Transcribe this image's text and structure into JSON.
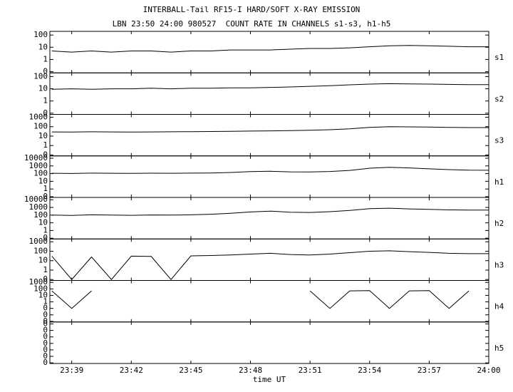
{
  "chart_data": {
    "type": "line",
    "title": "INTERBALL-Tail RF15-I HARD/SOFT X-RAY EMISSION",
    "subtitle": "LBN 23:50 24:00 980527  COUNT RATE IN CHANNELS s1-s3, h1-h5",
    "xlabel": "time UT",
    "yscale": "log",
    "color": "#000000",
    "x": [
      38,
      39,
      40,
      41,
      42,
      43,
      44,
      45,
      46,
      47,
      48,
      49,
      50,
      51,
      52,
      53,
      54,
      55,
      56,
      57,
      58,
      59,
      60
    ],
    "xlim": [
      37.9,
      60
    ],
    "xticks": [
      {
        "value": 39,
        "label": "23:39"
      },
      {
        "value": 42,
        "label": "23:42"
      },
      {
        "value": 45,
        "label": "23:45"
      },
      {
        "value": 48,
        "label": "23:48"
      },
      {
        "value": 51,
        "label": "23:51"
      },
      {
        "value": 54,
        "label": "23:54"
      },
      {
        "value": 57,
        "label": "23:57"
      },
      {
        "value": 60,
        "label": "24:00"
      }
    ],
    "series": [
      {
        "name": "s1",
        "ylim": [
          0.08,
          200
        ],
        "yticks": [
          {
            "value": 0.1,
            "label": "0"
          },
          1,
          10,
          100
        ],
        "values": [
          5,
          4,
          5,
          4,
          5,
          5,
          4,
          5,
          5,
          6,
          6,
          6,
          7,
          8,
          8,
          9,
          11,
          13,
          14,
          13,
          12,
          11,
          11
        ]
      },
      {
        "name": "s2",
        "ylim": [
          0.08,
          200
        ],
        "yticks": [
          {
            "value": 0.1,
            "label": "0"
          },
          1,
          10,
          100
        ],
        "values": [
          9,
          10,
          9,
          10,
          10,
          11,
          10,
          11,
          11,
          12,
          12,
          13,
          14,
          16,
          18,
          21,
          24,
          26,
          25,
          24,
          23,
          22,
          22
        ]
      },
      {
        "name": "s3",
        "ylim": [
          0.08,
          2000
        ],
        "yticks": [
          {
            "value": 0.1,
            "label": "0"
          },
          1,
          10,
          100,
          1000
        ],
        "values": [
          28,
          27,
          29,
          28,
          27,
          28,
          29,
          30,
          31,
          32,
          34,
          36,
          38,
          42,
          48,
          60,
          85,
          100,
          95,
          90,
          85,
          80,
          80
        ]
      },
      {
        "name": "h1",
        "ylim": [
          0.08,
          20000
        ],
        "yticks": [
          {
            "value": 0.1,
            "label": "0"
          },
          1,
          10,
          100,
          1000,
          10000
        ],
        "values": [
          110,
          105,
          115,
          110,
          108,
          112,
          110,
          115,
          120,
          140,
          180,
          200,
          170,
          165,
          190,
          260,
          500,
          650,
          550,
          420,
          330,
          280,
          270
        ]
      },
      {
        "name": "h2",
        "ylim": [
          0.08,
          20000
        ],
        "yticks": [
          {
            "value": 0.1,
            "label": "0"
          },
          1,
          10,
          100,
          1000,
          10000
        ],
        "values": [
          100,
          90,
          110,
          100,
          95,
          105,
          100,
          110,
          130,
          170,
          260,
          330,
          240,
          220,
          280,
          400,
          700,
          800,
          650,
          550,
          480,
          450,
          450
        ]
      },
      {
        "name": "h3",
        "ylim": [
          0.08,
          2000
        ],
        "yticks": [
          {
            "value": 0.1,
            "label": "0"
          },
          1,
          10,
          100,
          1000
        ],
        "values": [
          30,
          0.1,
          25,
          0.1,
          30,
          28,
          0.1,
          32,
          35,
          40,
          50,
          60,
          45,
          40,
          50,
          70,
          100,
          110,
          90,
          75,
          60,
          55,
          55
        ]
      },
      {
        "name": "h4",
        "ylim": [
          0.0008,
          2000
        ],
        "yticks": [
          {
            "value": 0.001,
            "label": "0"
          },
          {
            "value": 0.01,
            "label": "0"
          },
          {
            "value": 0.1,
            "label": "0"
          },
          1,
          10,
          100,
          1000
        ],
        "values": [
          50,
          0.1,
          50,
          null,
          null,
          null,
          null,
          null,
          null,
          null,
          null,
          null,
          null,
          50,
          0.1,
          50,
          55,
          0.1,
          50,
          55,
          0.1,
          50,
          null
        ]
      },
      {
        "name": "h5",
        "ylim": [
          8e-08,
          0.2
        ],
        "yticks": [
          {
            "value": 1e-07,
            "label": "0"
          },
          {
            "value": 1e-06,
            "label": "0"
          },
          {
            "value": 1e-05,
            "label": "0"
          },
          {
            "value": 0.0001,
            "label": "0"
          },
          {
            "value": 0.001,
            "label": "0"
          },
          {
            "value": 0.01,
            "label": "0"
          },
          {
            "value": 0.1,
            "label": "0"
          }
        ],
        "values": [
          null,
          null,
          null,
          null,
          null,
          null,
          null,
          null,
          null,
          null,
          null,
          null,
          null,
          null,
          null,
          null,
          null,
          null,
          null,
          null,
          null,
          null,
          null
        ]
      }
    ]
  }
}
